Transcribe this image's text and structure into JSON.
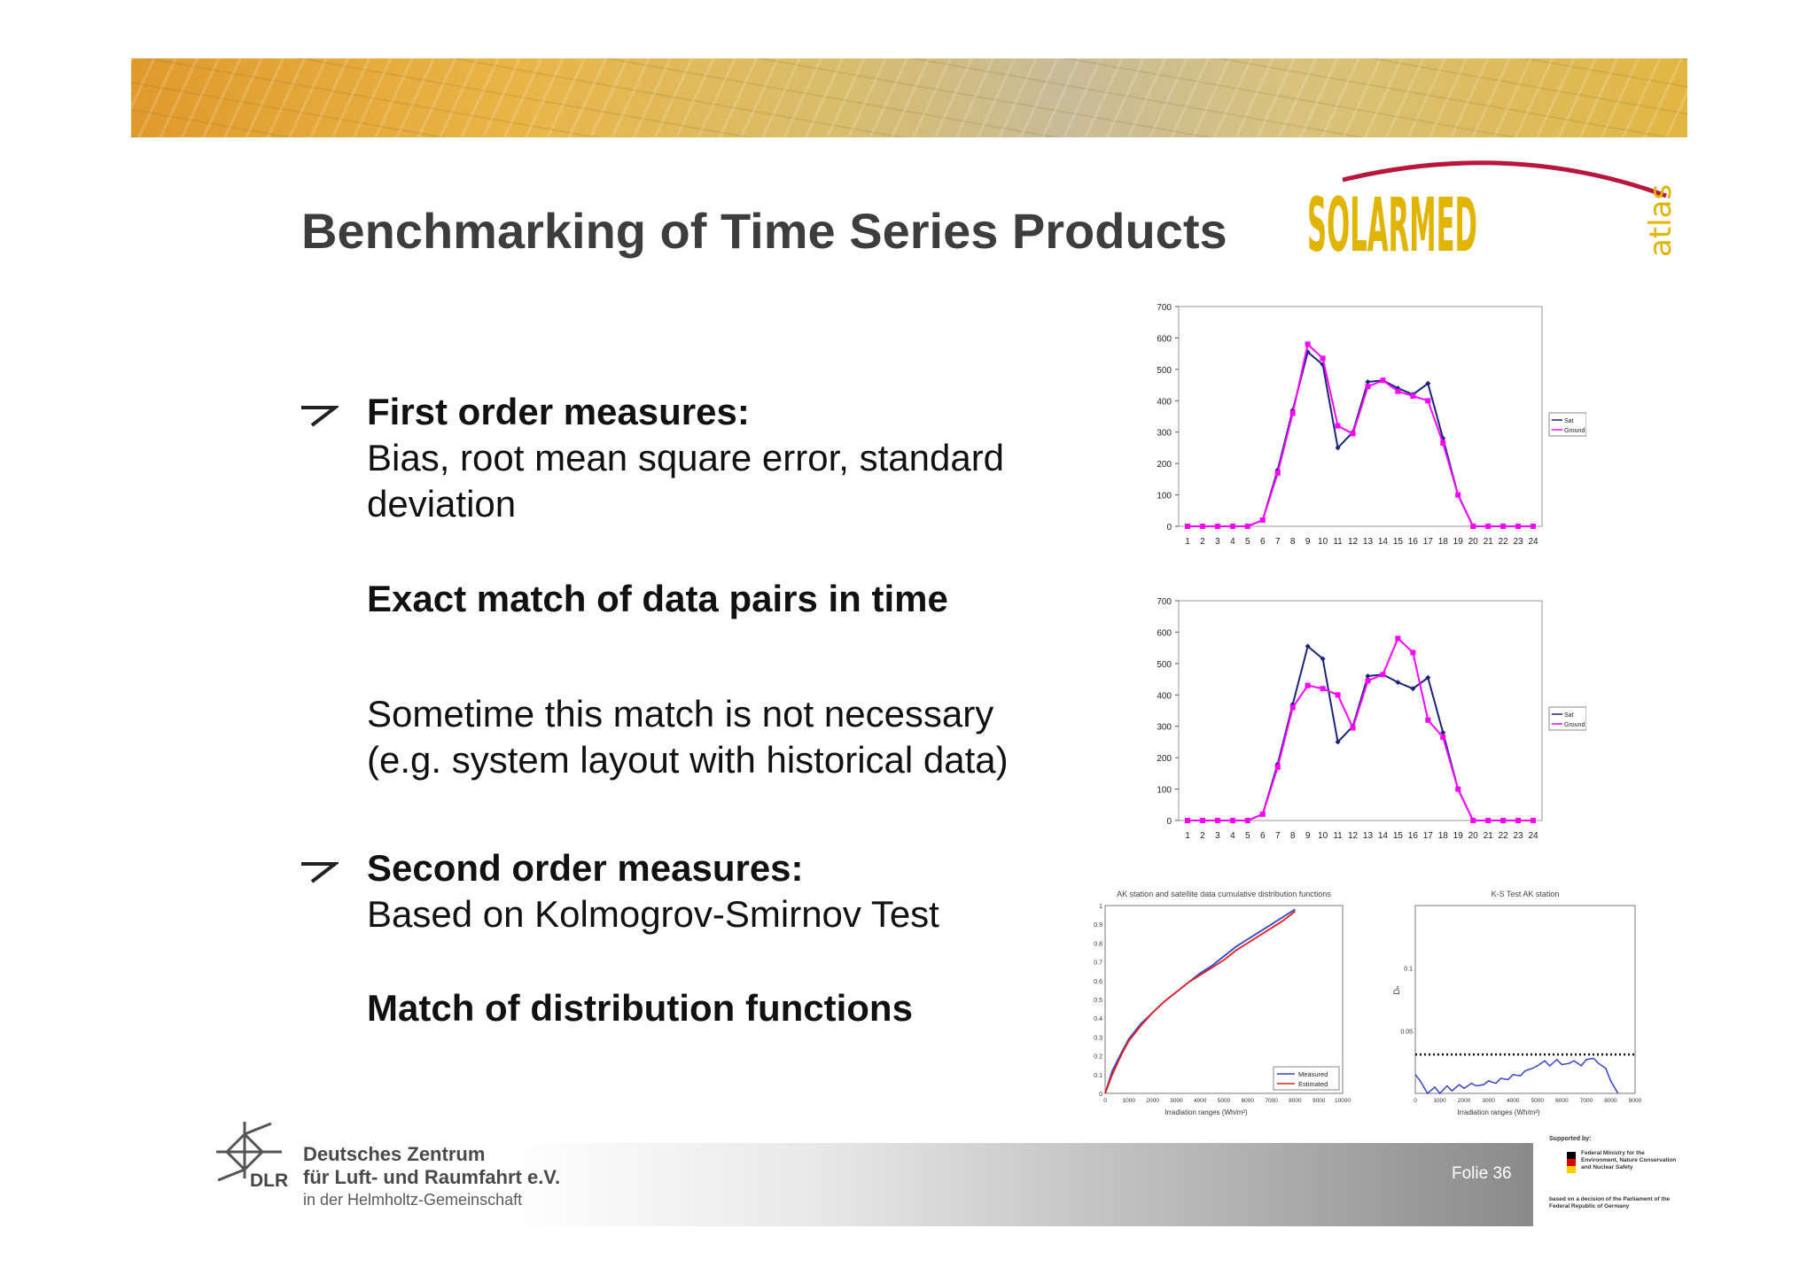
{
  "header": {
    "title": "Benchmarking of Time Series Products",
    "logo_text": "SOLARMED",
    "logo_sub": "atlas"
  },
  "bullets": {
    "first_heading": "First order measures:",
    "first_line1": "Bias, root mean square error, standard",
    "first_line2": "deviation",
    "exact_match": "Exact match of data pairs in time",
    "sometime_line1": "Sometime this match is not necessary",
    "sometime_line2": "(e.g. system layout with historical data)",
    "second_heading": "Second order measures:",
    "second_line1": "Based on Kolmogrov-Smirnov Test",
    "match_dist": "Match of distribution functions"
  },
  "footer": {
    "dlr_short": "DLR",
    "dlr_line1": "Deutsches Zentrum",
    "dlr_line2": "für Luft- und Raumfahrt e.V.",
    "dlr_line3": "in der Helmholtz-Gemeinschaft",
    "folio": "Folie 36",
    "supported_by": "Supported by:",
    "ministry": "Federal Ministry for the Environment, Nature Conservation and Nuclear Safety",
    "decision": "based on a decision of the Parliament of the Federal Republic of Germany"
  },
  "colors": {
    "sat": "#1a237e",
    "ground": "#ff00ff",
    "measured": "#3344cc",
    "estimated": "#e02020"
  },
  "chart_data": [
    {
      "type": "line",
      "x": [
        1,
        2,
        3,
        4,
        5,
        6,
        7,
        8,
        9,
        10,
        11,
        12,
        13,
        14,
        15,
        16,
        17,
        18,
        19,
        20,
        21,
        22,
        23,
        24
      ],
      "ylim": [
        0,
        700
      ],
      "yticks": [
        0,
        100,
        200,
        300,
        400,
        500,
        600,
        700
      ],
      "series": [
        {
          "name": "Sat",
          "values": [
            0,
            0,
            0,
            0,
            0,
            20,
            180,
            370,
            555,
            515,
            250,
            300,
            460,
            465,
            440,
            420,
            455,
            280,
            100,
            0,
            0,
            0,
            0,
            0
          ]
        },
        {
          "name": "Ground",
          "values": [
            0,
            0,
            0,
            0,
            0,
            20,
            170,
            360,
            580,
            535,
            320,
            295,
            445,
            465,
            430,
            415,
            400,
            265,
            100,
            0,
            0,
            0,
            0,
            0
          ]
        }
      ],
      "legend": "right"
    },
    {
      "type": "line",
      "x": [
        1,
        2,
        3,
        4,
        5,
        6,
        7,
        8,
        9,
        10,
        11,
        12,
        13,
        14,
        15,
        16,
        17,
        18,
        19,
        20,
        21,
        22,
        23,
        24
      ],
      "ylim": [
        0,
        700
      ],
      "yticks": [
        0,
        100,
        200,
        300,
        400,
        500,
        600,
        700
      ],
      "series": [
        {
          "name": "Sat",
          "values": [
            0,
            0,
            0,
            0,
            0,
            20,
            180,
            370,
            555,
            515,
            250,
            300,
            460,
            465,
            440,
            420,
            455,
            280,
            100,
            0,
            0,
            0,
            0,
            0
          ]
        },
        {
          "name": "Ground",
          "values": [
            0,
            0,
            0,
            0,
            0,
            20,
            170,
            360,
            430,
            420,
            400,
            295,
            445,
            465,
            580,
            535,
            320,
            265,
            100,
            0,
            0,
            0,
            0,
            0
          ]
        }
      ],
      "legend": "right"
    },
    {
      "type": "line",
      "title": "AK station and satellite data cumulative distribution functions",
      "xlabel": "Irradiation ranges (Wh/m²)",
      "xlim": [
        0,
        10000
      ],
      "xticks": [
        0,
        1000,
        2000,
        3000,
        4000,
        5000,
        6000,
        7000,
        8000,
        9000,
        10000
      ],
      "ylim": [
        0,
        1
      ],
      "yticks": [
        0,
        0.1,
        0.2,
        0.3,
        0.4,
        0.5,
        0.6,
        0.7,
        0.8,
        0.9,
        1
      ],
      "x": [
        0,
        300,
        700,
        1000,
        1500,
        2000,
        2500,
        3000,
        3500,
        4000,
        4500,
        5000,
        5500,
        6000,
        6500,
        7000,
        7500,
        8000
      ],
      "series": [
        {
          "name": "Measured",
          "values": [
            0,
            0.12,
            0.22,
            0.29,
            0.37,
            0.43,
            0.49,
            0.54,
            0.59,
            0.64,
            0.68,
            0.73,
            0.78,
            0.82,
            0.86,
            0.9,
            0.94,
            0.98
          ]
        },
        {
          "name": "Estimated",
          "values": [
            0,
            0.1,
            0.21,
            0.28,
            0.36,
            0.43,
            0.49,
            0.54,
            0.59,
            0.63,
            0.67,
            0.71,
            0.76,
            0.8,
            0.84,
            0.88,
            0.92,
            0.97
          ]
        }
      ],
      "legend": "bottom-right"
    },
    {
      "type": "line",
      "title": "K-S Test AK station",
      "xlabel": "Irradiation ranges (Wh/m²)",
      "ylabel": "Dₙ",
      "xlim": [
        0,
        9000
      ],
      "xticks": [
        0,
        1000,
        2000,
        3000,
        4000,
        5000,
        6000,
        7000,
        8000,
        9000
      ],
      "ylim": [
        0,
        0.15
      ],
      "yticks": [
        0.05,
        0.1
      ],
      "threshold": 0.031,
      "x": [
        0,
        200,
        500,
        800,
        1000,
        1300,
        1500,
        1800,
        2000,
        2300,
        2500,
        2800,
        3000,
        3300,
        3500,
        3800,
        4000,
        4300,
        4500,
        4800,
        5000,
        5300,
        5500,
        5800,
        6000,
        6300,
        6500,
        6800,
        7000,
        7300,
        7500,
        7800,
        8000,
        8300
      ],
      "series": [
        {
          "name": "Dn",
          "values": [
            0.015,
            0.01,
            0.0,
            0.005,
            0.0,
            0.006,
            0.002,
            0.007,
            0.004,
            0.008,
            0.006,
            0.007,
            0.01,
            0.008,
            0.012,
            0.011,
            0.015,
            0.014,
            0.018,
            0.02,
            0.022,
            0.026,
            0.022,
            0.027,
            0.023,
            0.024,
            0.026,
            0.022,
            0.027,
            0.028,
            0.024,
            0.02,
            0.01,
            0.0
          ]
        }
      ]
    }
  ]
}
